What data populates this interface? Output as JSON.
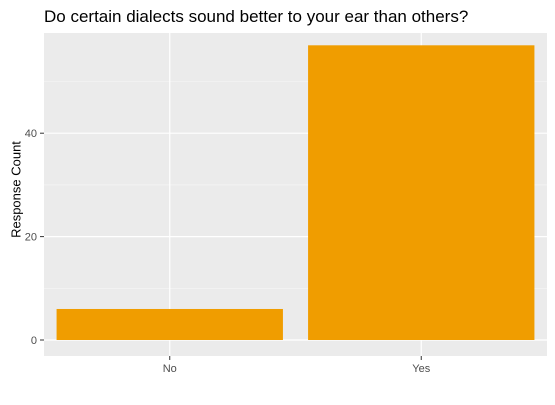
{
  "chart_data": {
    "type": "bar",
    "title": "Do certain dialects sound better to your ear than others?",
    "xlabel": "",
    "ylabel": "Response Count",
    "categories": [
      "No",
      "Yes"
    ],
    "values": [
      6,
      57
    ],
    "ylim": [
      0,
      60
    ],
    "yticks": [
      0,
      20,
      40
    ],
    "bar_color": "#F09D00",
    "panel_background": "#EBEBEB",
    "grid": true,
    "legend": "none"
  }
}
